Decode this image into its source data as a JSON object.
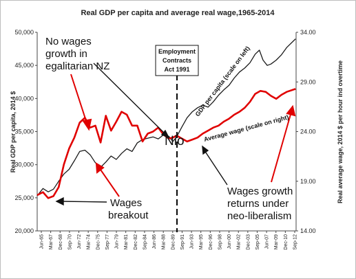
{
  "chart_data": {
    "type": "line",
    "title": "Real GDP per capita and average real wage,1965-2014",
    "ylabel_left": "Real GDP per capita, 2014 $",
    "ylabel_right": "Real average wage, 2014 $ per hour ind overtime",
    "yticks_left": [
      "20,000",
      "25,000",
      "30,000",
      "35,000",
      "40,000",
      "45,000",
      "50,000"
    ],
    "yticks_right": [
      "14.00",
      "19.00",
      "24.00",
      "29.00",
      "34.00"
    ],
    "ylim_left": [
      20000,
      50000
    ],
    "ylim_right": [
      14,
      34
    ],
    "x_tick_labels": [
      "Jun-65",
      "Mar-67",
      "Dec-68",
      "Sep-70",
      "Jun-72",
      "Mar-74",
      "Dec-75",
      "Sep-77",
      "Jun-79",
      "Mar-81",
      "Dec-82",
      "Sep-84",
      "Jun-86",
      "Mar-88",
      "Dec-89",
      "Sep-91",
      "Jun-93",
      "Mar-95",
      "Dec-96",
      "Sep-98",
      "Jun-00",
      "Mar-02",
      "Dec-03",
      "Sep-05",
      "Jun-07",
      "Mar-09",
      "Dec-10",
      "Sep-12"
    ],
    "xlim": [
      1965.4,
      2014.8
    ],
    "series": [
      {
        "name": "GDP per capita (scale on left)",
        "color": "#1a1a1a",
        "axis": "left",
        "x": [
          1965.4,
          1966.5,
          1967.5,
          1968.5,
          1969.5,
          1970.5,
          1971.5,
          1972.5,
          1973.5,
          1974.5,
          1975.5,
          1976.5,
          1977.5,
          1978.5,
          1979.5,
          1980.5,
          1981.5,
          1982.5,
          1983.5,
          1984.5,
          1985.5,
          1986.5,
          1987.5,
          1988.5,
          1989.5,
          1990.5,
          1991.3,
          1992,
          1993,
          1994,
          1995,
          1996,
          1997,
          1998,
          1999,
          2000,
          2001,
          2002,
          2003,
          2004,
          2005,
          2006,
          2007,
          2007.8,
          2008.5,
          2009.3,
          2010,
          2011,
          2012,
          2013,
          2014.7
        ],
        "values": [
          25300,
          26400,
          25900,
          26300,
          27500,
          28600,
          29300,
          30600,
          32000,
          32200,
          31500,
          30300,
          29600,
          30400,
          31300,
          30800,
          31700,
          32400,
          32000,
          33300,
          33800,
          34000,
          34200,
          33900,
          34500,
          34300,
          33500,
          34200,
          35700,
          37100,
          38000,
          38600,
          39000,
          38700,
          39500,
          40500,
          41300,
          42000,
          43100,
          44000,
          44600,
          45400,
          46700,
          47300,
          45800,
          45000,
          45200,
          45800,
          46600,
          47700,
          49000
        ]
      },
      {
        "name": "Average wage (scale on right)",
        "color": "#e00000",
        "axis": "right",
        "x": [
          1965.4,
          1966.5,
          1967.5,
          1968.5,
          1969.5,
          1970.5,
          1971.5,
          1972.5,
          1973.5,
          1974.5,
          1975.5,
          1976.5,
          1977.5,
          1978.5,
          1979.5,
          1980.5,
          1981.5,
          1982.5,
          1983.5,
          1984.5,
          1985.5,
          1986.5,
          1987.5,
          1988.5,
          1989.5,
          1990.5,
          1991.3,
          1992,
          1993,
          1994,
          1995,
          1996,
          1997,
          1998,
          1999,
          2000,
          2001,
          2002,
          2003,
          2004,
          2005,
          2006,
          2007,
          2008,
          2009,
          2010,
          2011,
          2012,
          2013,
          2014.7
        ],
        "values": [
          17.6,
          17.9,
          17.3,
          17.5,
          18.4,
          20.7,
          22.3,
          23.4,
          24.9,
          25.4,
          24.4,
          24.6,
          22.9,
          25.6,
          24.1,
          25.0,
          26.0,
          25.7,
          24.6,
          24.6,
          23.0,
          23.8,
          24.0,
          24.4,
          23.7,
          23.3,
          23.4,
          23.6,
          23.3,
          23.0,
          23.2,
          23.4,
          23.8,
          24.1,
          24.4,
          24.6,
          25.0,
          25.3,
          25.7,
          26.0,
          26.4,
          27.0,
          27.8,
          28.1,
          28.0,
          27.6,
          27.3,
          27.7,
          28.0,
          28.3
        ]
      }
    ],
    "annotations": {
      "nz_title": [
        "No wages",
        "growth in",
        "egalitarian NZ"
      ],
      "ecact": [
        "Employment",
        "Contracts",
        "Act 1991"
      ],
      "wages_breakout": [
        "Wages",
        "breakout"
      ],
      "wages_growth": [
        "Wages growth",
        "returns under",
        "neo-liberalism"
      ],
      "nio": "Nio",
      "gdp_line_label": "GDP per capita (scale on left)",
      "wage_line_label": "Average wage (scale on right)"
    },
    "grid": false
  }
}
